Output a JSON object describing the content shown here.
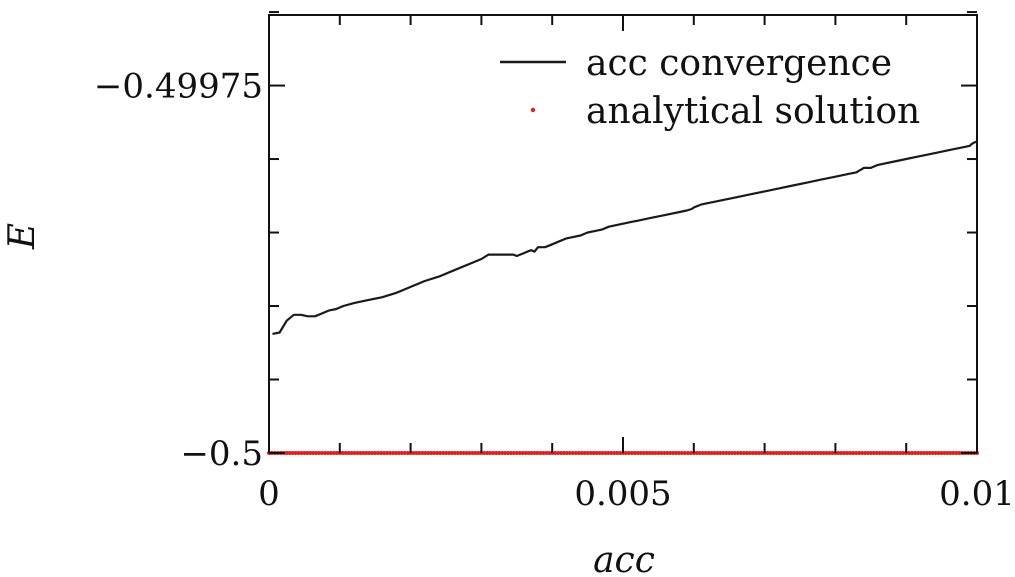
{
  "chart_data": {
    "type": "line",
    "title": "",
    "xlabel": "acc",
    "ylabel": "E",
    "xlim": [
      0,
      0.01
    ],
    "ylim": [
      -0.5,
      -0.499702
    ],
    "x_ticks": [
      {
        "value": 0,
        "label": "0"
      },
      {
        "value": 0.005,
        "label": "0.005"
      },
      {
        "value": 0.01,
        "label": "0.01"
      }
    ],
    "x_minor_ticks": [
      0.001,
      0.002,
      0.003,
      0.004,
      0.006,
      0.007,
      0.008,
      0.009
    ],
    "y_ticks": [
      {
        "value": -0.5,
        "label": "−0.5"
      },
      {
        "value": -0.49975,
        "label": "−0.49975"
      }
    ],
    "y_minor_ticks": [
      -0.4999,
      -0.4998,
      -0.4997
    ],
    "y_minor_ticks_all": [
      -0.49995,
      -0.4999,
      -0.49985,
      -0.4998,
      -0.4997
    ],
    "grid": false,
    "legend_position": "top-right",
    "colors": {
      "convergence": "#1a1a1a",
      "analytical": "#e02020"
    },
    "series": [
      {
        "name": "acc convergence",
        "style": "line",
        "x": [
          5e-05,
          0.00015,
          0.00025,
          0.00035,
          0.00045,
          0.00055,
          0.00065,
          0.00075,
          0.00085,
          0.00095,
          0.00105,
          0.0012,
          0.0014,
          0.0016,
          0.0018,
          0.0019,
          0.002,
          0.0022,
          0.0024,
          0.0026,
          0.0028,
          0.003,
          0.0031,
          0.0032,
          0.00328,
          0.00335,
          0.00345,
          0.0035,
          0.0036,
          0.0036,
          0.00365,
          0.0037,
          0.00375,
          0.0038,
          0.0039,
          0.004,
          0.0041,
          0.0042,
          0.0043,
          0.0044,
          0.0045,
          0.0046,
          0.0047,
          0.0048,
          0.0049,
          0.005,
          0.0051,
          0.0052,
          0.0054,
          0.0056,
          0.0058,
          0.0059,
          0.00597,
          0.006,
          0.0061,
          0.0062,
          0.0063,
          0.0064,
          0.0066,
          0.0068,
          0.007,
          0.0072,
          0.0074,
          0.0076,
          0.0078,
          0.008,
          0.0082,
          0.0083,
          0.00833,
          0.00837,
          0.0084,
          0.0085,
          0.00855,
          0.0086,
          0.0087,
          0.0088,
          0.0089,
          0.009,
          0.0092,
          0.0094,
          0.0096,
          0.0098,
          0.0099,
          0.00992,
          0.00995,
          0.01,
          0.01
        ],
        "values": [
          -0.499919,
          -0.499918,
          -0.49991,
          -0.499906,
          -0.499906,
          -0.499907,
          -0.499907,
          -0.499905,
          -0.499903,
          -0.499902,
          -0.4999,
          -0.499898,
          -0.499896,
          -0.499894,
          -0.499891,
          -0.499889,
          -0.499887,
          -0.499883,
          -0.49988,
          -0.499876,
          -0.499872,
          -0.499868,
          -0.499865,
          -0.499865,
          -0.499865,
          -0.499865,
          -0.499865,
          -0.499866,
          -0.499864,
          -0.499864,
          -0.499863,
          -0.499862,
          -0.499863,
          -0.49986,
          -0.49986,
          -0.499858,
          -0.499856,
          -0.499854,
          -0.499853,
          -0.499852,
          -0.49985,
          -0.499849,
          -0.499848,
          -0.499846,
          -0.499845,
          -0.499844,
          -0.499843,
          -0.499842,
          -0.49984,
          -0.499838,
          -0.499836,
          -0.499835,
          -0.499834,
          -0.499833,
          -0.499831,
          -0.49983,
          -0.499829,
          -0.499828,
          -0.499826,
          -0.499824,
          -0.499822,
          -0.49982,
          -0.499818,
          -0.499816,
          -0.499814,
          -0.499812,
          -0.49981,
          -0.499809,
          -0.499808,
          -0.499807,
          -0.499806,
          -0.499806,
          -0.499805,
          -0.499804,
          -0.499803,
          -0.499802,
          -0.499801,
          -0.4998,
          -0.499798,
          -0.499796,
          -0.499794,
          -0.499792,
          -0.499791,
          -0.49979,
          -0.499789,
          -0.499788,
          -0.499788
        ]
      },
      {
        "name": "analytical solution",
        "style": "points",
        "x_range": [
          0,
          0.01
        ],
        "value": -0.5
      }
    ]
  }
}
